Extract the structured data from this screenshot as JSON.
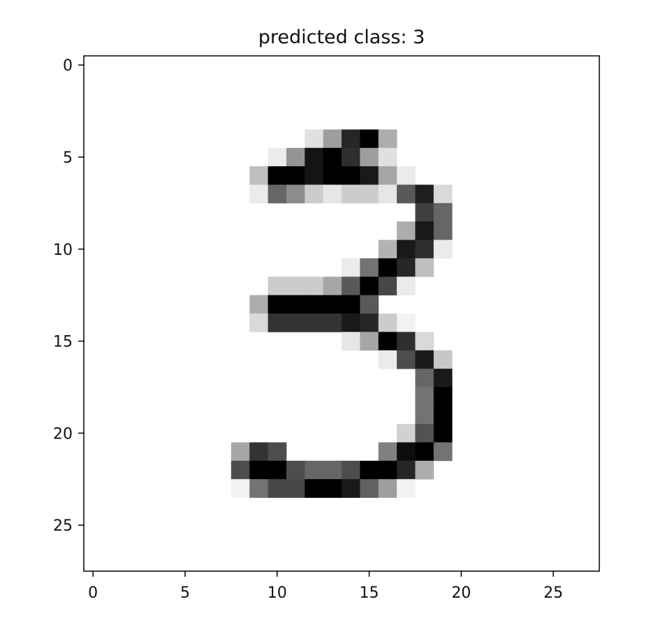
{
  "chart_data": {
    "type": "heatmap",
    "title": "predicted class: 3",
    "xlabel": "",
    "ylabel": "",
    "colormap": "gray_r",
    "grid": false,
    "xlim": [
      -0.5,
      27.5
    ],
    "ylim": [
      27.5,
      -0.5
    ],
    "x_ticks": [
      0,
      5,
      10,
      15,
      20,
      25
    ],
    "y_ticks": [
      0,
      5,
      10,
      15,
      20,
      25
    ],
    "x_tick_labels": [
      "0",
      "5",
      "10",
      "15",
      "20",
      "25"
    ],
    "y_tick_labels": [
      "0",
      "5",
      "10",
      "15",
      "20",
      "25"
    ],
    "shape": [
      28,
      28
    ],
    "value_scale": "0 = white, 1 = black",
    "values": [
      [
        0,
        0,
        0,
        0,
        0,
        0,
        0,
        0,
        0,
        0,
        0,
        0,
        0,
        0,
        0,
        0,
        0,
        0,
        0,
        0,
        0,
        0,
        0,
        0,
        0,
        0,
        0,
        0
      ],
      [
        0,
        0,
        0,
        0,
        0,
        0,
        0,
        0,
        0,
        0,
        0,
        0,
        0,
        0,
        0,
        0,
        0,
        0,
        0,
        0,
        0,
        0,
        0,
        0,
        0,
        0,
        0,
        0
      ],
      [
        0,
        0,
        0,
        0,
        0,
        0,
        0,
        0,
        0,
        0,
        0,
        0,
        0,
        0,
        0,
        0,
        0,
        0,
        0,
        0,
        0,
        0,
        0,
        0,
        0,
        0,
        0,
        0
      ],
      [
        0,
        0,
        0,
        0,
        0,
        0,
        0,
        0,
        0,
        0,
        0,
        0,
        0,
        0,
        0,
        0,
        0,
        0,
        0,
        0,
        0,
        0,
        0,
        0,
        0,
        0,
        0,
        0
      ],
      [
        0,
        0,
        0,
        0,
        0,
        0,
        0,
        0,
        0,
        0,
        0,
        0,
        0.12,
        0.38,
        0.85,
        1.0,
        0.32,
        0,
        0,
        0,
        0,
        0,
        0,
        0,
        0,
        0,
        0,
        0
      ],
      [
        0,
        0,
        0,
        0,
        0,
        0,
        0,
        0,
        0,
        0,
        0.08,
        0.42,
        0.92,
        1.0,
        0.82,
        0.38,
        0.12,
        0,
        0,
        0,
        0,
        0,
        0,
        0,
        0,
        0,
        0,
        0
      ],
      [
        0,
        0,
        0,
        0,
        0,
        0,
        0,
        0,
        0,
        0.25,
        1.0,
        1.0,
        0.92,
        1.0,
        1.0,
        0.9,
        0.35,
        0.08,
        0,
        0,
        0,
        0,
        0,
        0,
        0,
        0,
        0,
        0
      ],
      [
        0,
        0,
        0,
        0,
        0,
        0,
        0,
        0,
        0,
        0.08,
        0.6,
        0.45,
        0.2,
        0.1,
        0.2,
        0.2,
        0.1,
        0.65,
        0.88,
        0.15,
        0,
        0,
        0,
        0,
        0,
        0,
        0,
        0
      ],
      [
        0,
        0,
        0,
        0,
        0,
        0,
        0,
        0,
        0,
        0,
        0,
        0,
        0,
        0,
        0,
        0,
        0,
        0,
        0.75,
        0.6,
        0,
        0,
        0,
        0,
        0,
        0,
        0,
        0
      ],
      [
        0,
        0,
        0,
        0,
        0,
        0,
        0,
        0,
        0,
        0,
        0,
        0,
        0,
        0,
        0,
        0,
        0,
        0.32,
        0.9,
        0.6,
        0,
        0,
        0,
        0,
        0,
        0,
        0,
        0
      ],
      [
        0,
        0,
        0,
        0,
        0,
        0,
        0,
        0,
        0,
        0,
        0,
        0,
        0,
        0,
        0,
        0,
        0.3,
        0.9,
        0.82,
        0.08,
        0,
        0,
        0,
        0,
        0,
        0,
        0,
        0
      ],
      [
        0,
        0,
        0,
        0,
        0,
        0,
        0,
        0,
        0,
        0,
        0,
        0,
        0,
        0,
        0.08,
        0.55,
        1.0,
        0.85,
        0.25,
        0,
        0,
        0,
        0,
        0,
        0,
        0,
        0,
        0
      ],
      [
        0,
        0,
        0,
        0,
        0,
        0,
        0,
        0,
        0,
        0,
        0.2,
        0.2,
        0.2,
        0.35,
        0.65,
        1.0,
        0.72,
        0.08,
        0,
        0,
        0,
        0,
        0,
        0,
        0,
        0,
        0,
        0
      ],
      [
        0,
        0,
        0,
        0,
        0,
        0,
        0,
        0,
        0,
        0.32,
        1.0,
        1.0,
        1.0,
        1.0,
        1.0,
        0.65,
        0,
        0,
        0,
        0,
        0,
        0,
        0,
        0,
        0,
        0,
        0,
        0
      ],
      [
        0,
        0,
        0,
        0,
        0,
        0,
        0,
        0,
        0,
        0.15,
        0.8,
        0.8,
        0.8,
        0.8,
        0.9,
        0.85,
        0.2,
        0.05,
        0,
        0,
        0,
        0,
        0,
        0,
        0,
        0,
        0,
        0
      ],
      [
        0,
        0,
        0,
        0,
        0,
        0,
        0,
        0,
        0,
        0,
        0,
        0,
        0,
        0,
        0.1,
        0.35,
        1.0,
        0.82,
        0.15,
        0,
        0,
        0,
        0,
        0,
        0,
        0,
        0,
        0
      ],
      [
        0,
        0,
        0,
        0,
        0,
        0,
        0,
        0,
        0,
        0,
        0,
        0,
        0,
        0,
        0,
        0,
        0.08,
        0.7,
        0.9,
        0.22,
        0,
        0,
        0,
        0,
        0,
        0,
        0,
        0
      ],
      [
        0,
        0,
        0,
        0,
        0,
        0,
        0,
        0,
        0,
        0,
        0,
        0,
        0,
        0,
        0,
        0,
        0,
        0,
        0.6,
        0.9,
        0,
        0,
        0,
        0,
        0,
        0,
        0,
        0
      ],
      [
        0,
        0,
        0,
        0,
        0,
        0,
        0,
        0,
        0,
        0,
        0,
        0,
        0,
        0,
        0,
        0,
        0,
        0,
        0.55,
        1.0,
        0,
        0,
        0,
        0,
        0,
        0,
        0,
        0
      ],
      [
        0,
        0,
        0,
        0,
        0,
        0,
        0,
        0,
        0,
        0,
        0,
        0,
        0,
        0,
        0,
        0,
        0,
        0,
        0.55,
        1.0,
        0,
        0,
        0,
        0,
        0,
        0,
        0,
        0
      ],
      [
        0,
        0,
        0,
        0,
        0,
        0,
        0,
        0,
        0,
        0,
        0,
        0,
        0,
        0,
        0,
        0,
        0,
        0.18,
        0.68,
        1.0,
        0,
        0,
        0,
        0,
        0,
        0,
        0,
        0
      ],
      [
        0,
        0,
        0,
        0,
        0,
        0,
        0,
        0,
        0.35,
        0.8,
        0.7,
        0,
        0,
        0,
        0,
        0,
        0.5,
        0.95,
        1.0,
        0.55,
        0,
        0,
        0,
        0,
        0,
        0,
        0,
        0
      ],
      [
        0,
        0,
        0,
        0,
        0,
        0,
        0,
        0,
        0.7,
        1.0,
        1.0,
        0.7,
        0.6,
        0.6,
        0.7,
        1.0,
        1.0,
        0.85,
        0.32,
        0,
        0,
        0,
        0,
        0,
        0,
        0,
        0,
        0
      ],
      [
        0,
        0,
        0,
        0,
        0,
        0,
        0,
        0,
        0.05,
        0.55,
        0.72,
        0.72,
        1.0,
        1.0,
        0.9,
        0.62,
        0.38,
        0.05,
        0,
        0,
        0,
        0,
        0,
        0,
        0,
        0,
        0,
        0
      ],
      [
        0,
        0,
        0,
        0,
        0,
        0,
        0,
        0,
        0,
        0,
        0,
        0,
        0,
        0,
        0,
        0,
        0,
        0,
        0,
        0,
        0,
        0,
        0,
        0,
        0,
        0,
        0,
        0
      ],
      [
        0,
        0,
        0,
        0,
        0,
        0,
        0,
        0,
        0,
        0,
        0,
        0,
        0,
        0,
        0,
        0,
        0,
        0,
        0,
        0,
        0,
        0,
        0,
        0,
        0,
        0,
        0,
        0
      ],
      [
        0,
        0,
        0,
        0,
        0,
        0,
        0,
        0,
        0,
        0,
        0,
        0,
        0,
        0,
        0,
        0,
        0,
        0,
        0,
        0,
        0,
        0,
        0,
        0,
        0,
        0,
        0,
        0
      ],
      [
        0,
        0,
        0,
        0,
        0,
        0,
        0,
        0,
        0,
        0,
        0,
        0,
        0,
        0,
        0,
        0,
        0,
        0,
        0,
        0,
        0,
        0,
        0,
        0,
        0,
        0,
        0,
        0
      ]
    ]
  }
}
